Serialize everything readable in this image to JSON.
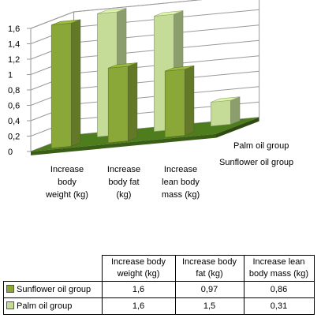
{
  "chart_data": {
    "type": "bar",
    "categories": [
      "Increase body weight (kg)",
      "Increase body fat (kg)",
      "Increase lean body mass (kg)"
    ],
    "category_labels": [
      [
        "Increase",
        "body",
        "weight (kg)"
      ],
      [
        "Increase",
        "body fat",
        "(kg)"
      ],
      [
        "Increase",
        "lean body",
        "mass (kg)"
      ]
    ],
    "series": [
      {
        "name": "Sunflower oil group",
        "values": [
          1.6,
          0.97,
          0.86
        ],
        "color": "#8aa838"
      },
      {
        "name": "Palm oil group",
        "values": [
          1.6,
          1.5,
          0.31
        ],
        "color": "#c4dc98"
      }
    ],
    "ylim": [
      0,
      1.6
    ],
    "yticks": [
      "0",
      "0,2",
      "0,4",
      "0,6",
      "0,8",
      "1",
      "1,2",
      "1,4",
      "1,6"
    ],
    "values_text": [
      [
        "1,6",
        "0,97",
        "0,86"
      ],
      [
        "1,6",
        "1,5",
        "0,31"
      ]
    ],
    "table_headers": [
      "Increase body weight (kg)",
      "Increase body fat (kg)",
      "Increase lean body mass  (kg)"
    ],
    "grid": true,
    "legend": "data table below chart",
    "floor_color": "#4e7d1e"
  }
}
